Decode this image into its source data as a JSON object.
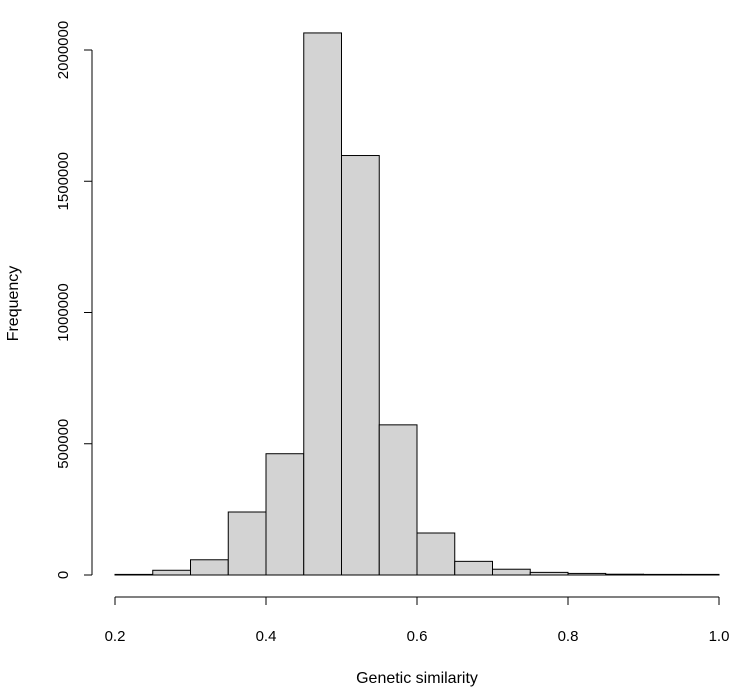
{
  "chart_data": {
    "type": "bar",
    "title": "",
    "xlabel": "Genetic similarity",
    "ylabel": "Frequency",
    "xlim": [
      0.2,
      1.0
    ],
    "ylim": [
      0,
      2000000
    ],
    "x_ticks": [
      0.2,
      0.4,
      0.6,
      0.8,
      1.0
    ],
    "x_tick_labels": [
      "0.2",
      "0.4",
      "0.6",
      "0.8",
      "1.0"
    ],
    "y_ticks": [
      0,
      500000,
      1000000,
      1500000,
      2000000
    ],
    "y_tick_labels": [
      "0",
      "500000",
      "1000000",
      "1500000",
      "2000000"
    ],
    "bins": [
      {
        "start": 0.2,
        "end": 0.25,
        "value": 500
      },
      {
        "start": 0.25,
        "end": 0.3,
        "value": 18000
      },
      {
        "start": 0.3,
        "end": 0.35,
        "value": 58000
      },
      {
        "start": 0.35,
        "end": 0.4,
        "value": 240000
      },
      {
        "start": 0.4,
        "end": 0.45,
        "value": 462000
      },
      {
        "start": 0.45,
        "end": 0.5,
        "value": 2065000
      },
      {
        "start": 0.5,
        "end": 0.55,
        "value": 1598000
      },
      {
        "start": 0.55,
        "end": 0.6,
        "value": 572000
      },
      {
        "start": 0.6,
        "end": 0.65,
        "value": 160000
      },
      {
        "start": 0.65,
        "end": 0.7,
        "value": 52000
      },
      {
        "start": 0.7,
        "end": 0.75,
        "value": 22000
      },
      {
        "start": 0.75,
        "end": 0.8,
        "value": 10000
      },
      {
        "start": 0.8,
        "end": 0.85,
        "value": 6000
      },
      {
        "start": 0.85,
        "end": 0.9,
        "value": 3000
      },
      {
        "start": 0.9,
        "end": 0.95,
        "value": 1000
      },
      {
        "start": 0.95,
        "end": 1.0,
        "value": 500
      }
    ]
  }
}
